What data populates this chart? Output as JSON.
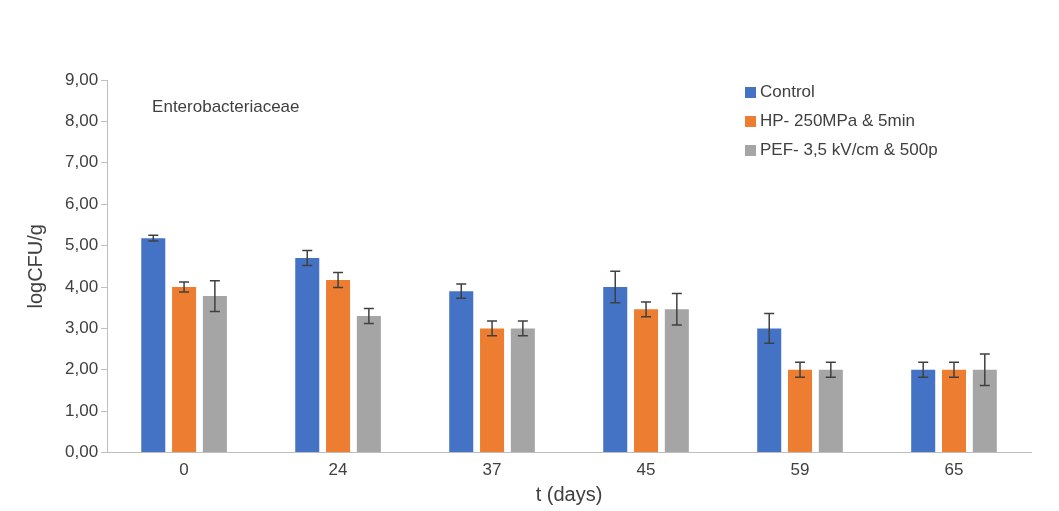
{
  "chart_data": {
    "type": "bar",
    "xlabel": "t (days)",
    "ylabel": "logCFU/g",
    "categories": [
      "0",
      "24",
      "37",
      "45",
      "59",
      "65"
    ],
    "series": [
      {
        "name": "Control",
        "color": "#4472c4",
        "values": [
          5.18,
          4.7,
          3.9,
          4.0,
          3.0,
          2.0
        ],
        "errors": [
          0.07,
          0.18,
          0.17,
          0.38,
          0.36,
          0.18
        ]
      },
      {
        "name": "HP- 250MPa & 5min",
        "color": "#ed7d31",
        "values": [
          4.0,
          4.17,
          3.0,
          3.46,
          2.0,
          2.0
        ],
        "errors": [
          0.12,
          0.18,
          0.18,
          0.18,
          0.18,
          0.18
        ]
      },
      {
        "name": "PEF- 3,5 kV/cm & 500p",
        "color": "#a5a5a5",
        "values": [
          3.78,
          3.3,
          3.0,
          3.46,
          2.0,
          2.0
        ],
        "errors": [
          0.37,
          0.18,
          0.18,
          0.38,
          0.18,
          0.38
        ]
      }
    ],
    "ylim": [
      0,
      9
    ],
    "yticks": [
      {
        "value": 0,
        "label": "0,00"
      },
      {
        "value": 1,
        "label": "1,00"
      },
      {
        "value": 2,
        "label": "2,00"
      },
      {
        "value": 3,
        "label": "3,00"
      },
      {
        "value": 4,
        "label": "4,00"
      },
      {
        "value": 5,
        "label": "5,00"
      },
      {
        "value": 6,
        "label": "6,00"
      },
      {
        "value": 7,
        "label": "7,00"
      },
      {
        "value": 8,
        "label": "8,00"
      },
      {
        "value": 9,
        "label": "9,00"
      }
    ],
    "annotations": [
      "Enterobacteriaceae"
    ],
    "legend": "top right",
    "grid": false
  }
}
